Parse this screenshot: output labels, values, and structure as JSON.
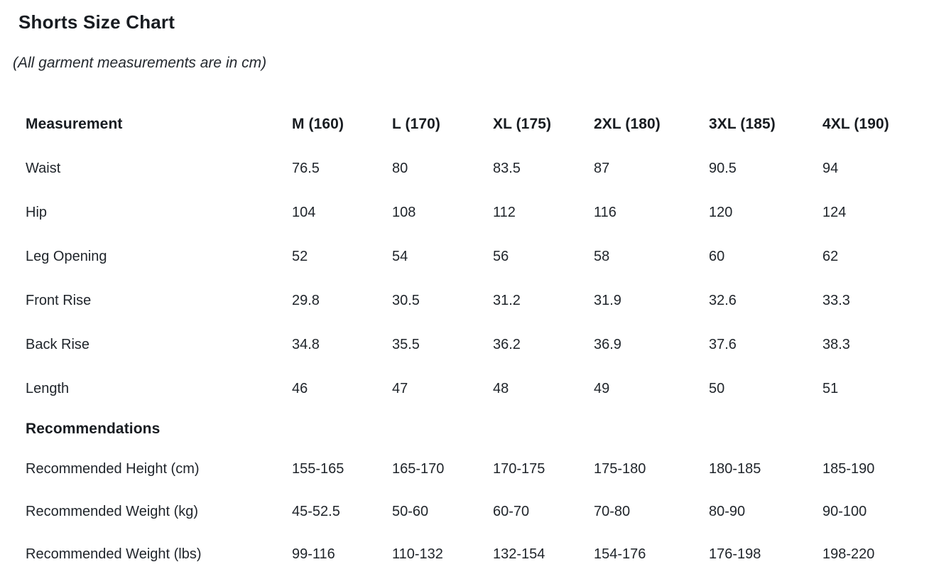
{
  "page": {
    "title": "Shorts Size Chart",
    "subtitle": "(All garment measurements are in cm)"
  },
  "colors": {
    "background": "#ffffff",
    "text": "#1f242a",
    "heading_text": "#181c21"
  },
  "table": {
    "header": {
      "label": "Measurement",
      "columns": [
        "M (160)",
        "L (170)",
        "XL (175)",
        "2XL (180)",
        "3XL (185)",
        "4XL (190)"
      ]
    },
    "rows": [
      {
        "label": "Waist",
        "values": [
          "76.5",
          "80",
          "83.5",
          "87",
          "90.5",
          "94"
        ]
      },
      {
        "label": "Hip",
        "values": [
          "104",
          "108",
          "112",
          "116",
          "120",
          "124"
        ]
      },
      {
        "label": "Leg Opening",
        "values": [
          "52",
          "54",
          "56",
          "58",
          "60",
          "62"
        ]
      },
      {
        "label": "Front Rise",
        "values": [
          "29.8",
          "30.5",
          "31.2",
          "31.9",
          "32.6",
          "33.3"
        ]
      },
      {
        "label": "Back Rise",
        "values": [
          "34.8",
          "35.5",
          "36.2",
          "36.9",
          "37.6",
          "38.3"
        ]
      },
      {
        "label": "Length",
        "values": [
          "46",
          "47",
          "48",
          "49",
          "50",
          "51"
        ]
      }
    ],
    "section_label": "Recommendations",
    "recommendation_rows": [
      {
        "label": "Recommended Height (cm)",
        "values": [
          "155-165",
          "165-170",
          "170-175",
          "175-180",
          "180-185",
          "185-190"
        ]
      },
      {
        "label": "Recommended Weight (kg)",
        "values": [
          "45-52.5",
          "50-60",
          "60-70",
          "70-80",
          "80-90",
          "90-100"
        ]
      },
      {
        "label": "Recommended Weight (lbs)",
        "values": [
          "99-116",
          "110-132",
          "132-154",
          "154-176",
          "176-198",
          "198-220"
        ]
      }
    ]
  }
}
